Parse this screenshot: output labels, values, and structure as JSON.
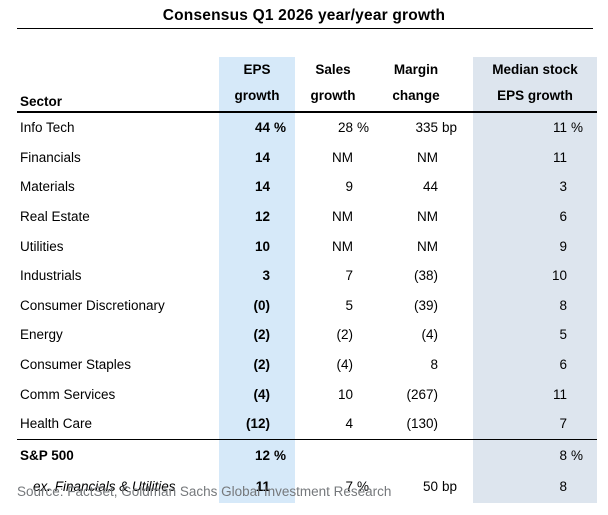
{
  "source": "Source: FactSet, Goldman Sachs Global Investment Research",
  "header": {
    "sector": "Sector",
    "eps": [
      "EPS",
      "growth"
    ],
    "sales": [
      "Sales",
      "growth"
    ],
    "margin": [
      "Margin",
      "change"
    ],
    "median": [
      "Median stock",
      "EPS growth"
    ]
  },
  "chart_data": {
    "type": "table",
    "title": "Consensus Q1 2026 year/year growth",
    "columns": [
      "Sector",
      "EPS growth",
      "Sales growth",
      "Margin change",
      "Median stock EPS growth"
    ],
    "rows": [
      [
        "Info Tech",
        "44 %",
        "28 %",
        "335 bp",
        "11 %"
      ],
      [
        "Financials",
        "14",
        "NM",
        "NM",
        "11"
      ],
      [
        "Materials",
        "14",
        "9",
        "44",
        "3"
      ],
      [
        "Real Estate",
        "12",
        "NM",
        "NM",
        "6"
      ],
      [
        "Utilities",
        "10",
        "NM",
        "NM",
        "9"
      ],
      [
        "Industrials",
        "3",
        "7",
        "(38)",
        "10"
      ],
      [
        "Consumer Discretionary",
        "(0)",
        "5",
        "(39)",
        "8"
      ],
      [
        "Energy",
        "(2)",
        "(2)",
        "(4)",
        "5"
      ],
      [
        "Consumer Staples",
        "(2)",
        "(4)",
        "8",
        "6"
      ],
      [
        "Comm Services",
        "(4)",
        "10",
        "(267)",
        "11"
      ],
      [
        "Health Care",
        "(12)",
        "4",
        "(130)",
        "7"
      ]
    ],
    "summary_rows": [
      {
        "label": "S&P 500",
        "cells": [
          "12 %",
          "",
          "",
          "8 %"
        ],
        "style": "bold"
      },
      {
        "label": "ex. Financials & Utilities",
        "cells": [
          "11",
          "7 %",
          "50 bp",
          "8"
        ],
        "style": "italic-indent"
      }
    ]
  },
  "colors": {
    "eps_highlight": "#d6e9f9",
    "median_highlight": "#dde5ee",
    "rule": "#000000",
    "source_text": "#75787b"
  }
}
